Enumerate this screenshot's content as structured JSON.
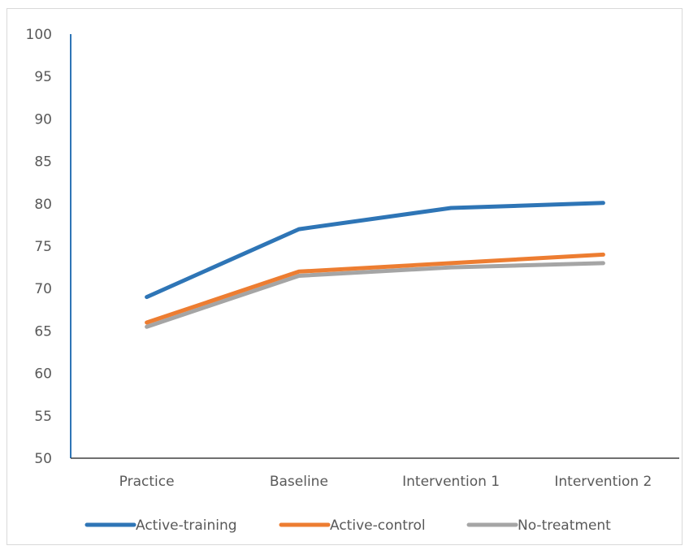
{
  "chart_data": {
    "type": "line",
    "title": "",
    "xlabel": "",
    "ylabel": "",
    "categories": [
      "Practice",
      "Baseline",
      "Intervention 1",
      "Intervention 2"
    ],
    "ylim": [
      50,
      100
    ],
    "yticks": [
      50,
      55,
      60,
      65,
      70,
      75,
      80,
      85,
      90,
      95,
      100
    ],
    "grid": false,
    "legend_position": "bottom",
    "series": [
      {
        "name": "Active-training",
        "color": "#2e75b6",
        "values": [
          69,
          77,
          79.5,
          80.1
        ]
      },
      {
        "name": "Active-control",
        "color": "#ed7d31",
        "values": [
          66,
          72,
          73,
          74
        ]
      },
      {
        "name": "No-treatment",
        "color": "#a5a5a5",
        "values": [
          65.5,
          71.5,
          72.5,
          73
        ]
      }
    ]
  }
}
